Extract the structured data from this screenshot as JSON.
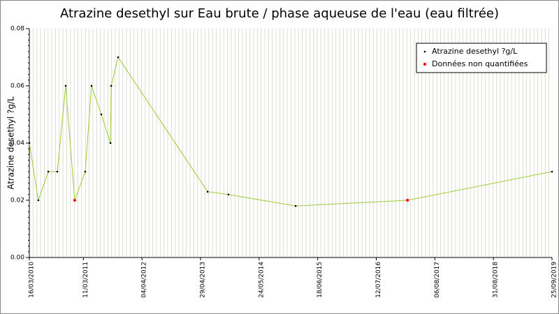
{
  "chart_data": {
    "type": "line",
    "title": "Atrazine desethyl sur Eau brute / phase aqueuse de l'eau (eau filtrée)",
    "y_label": "Atrazine desethyl ?g/L",
    "x": [
      "2010-03-16",
      "2010-05-15",
      "2010-07-20",
      "2010-09-18",
      "2010-11-13",
      "2011-01-12",
      "2011-03-23",
      "2011-05-04",
      "2011-07-08",
      "2011-09-07",
      "2011-09-12",
      "2011-10-28",
      "2013-06-15",
      "2013-11-01",
      "2015-01-22",
      "2017-02-05",
      "2019-09-25"
    ],
    "series": [
      {
        "name": "Atrazine desethyl ?g/L",
        "color": "#9acd32",
        "marker_color": "#000000",
        "values": [
          0.04,
          0.02,
          0.03,
          0.03,
          0.06,
          0.02,
          0.03,
          0.06,
          0.05,
          0.04,
          0.06,
          0.07,
          0.023,
          0.022,
          0.018,
          0.02,
          0.03
        ]
      },
      {
        "name": "Données non quantifiées",
        "color": "#ff0000",
        "x": [
          "2011-01-12",
          "2017-02-05"
        ],
        "values": [
          0.02,
          0.02
        ]
      }
    ],
    "xlim": [
      "2010-03-16",
      "2019-09-25"
    ],
    "xticks": [
      {
        "value": "2010-03-16",
        "label": "16/03/2010"
      },
      {
        "value": "2011-03-11",
        "label": "11/03/2011"
      },
      {
        "value": "2012-04-04",
        "label": "04/04/2012"
      },
      {
        "value": "2013-04-29",
        "label": "29/04/2013"
      },
      {
        "value": "2014-05-24",
        "label": "24/05/2014"
      },
      {
        "value": "2015-06-18",
        "label": "18/06/2015"
      },
      {
        "value": "2016-07-12",
        "label": "12/07/2016"
      },
      {
        "value": "2017-08-06",
        "label": "06/08/2017"
      },
      {
        "value": "2018-08-31",
        "label": "31/08/2018"
      },
      {
        "value": "2019-09-25",
        "label": "25/09/2019"
      }
    ],
    "ylim": [
      0,
      0.08
    ],
    "yticks": [
      {
        "value": 0,
        "label": "0.00"
      },
      {
        "value": 0.02,
        "label": "0.02"
      },
      {
        "value": 0.04,
        "label": "0.04"
      },
      {
        "value": 0.06,
        "label": "0.06"
      },
      {
        "value": 0.08,
        "label": "0.08"
      }
    ],
    "grid": true,
    "legend": "upper right"
  }
}
